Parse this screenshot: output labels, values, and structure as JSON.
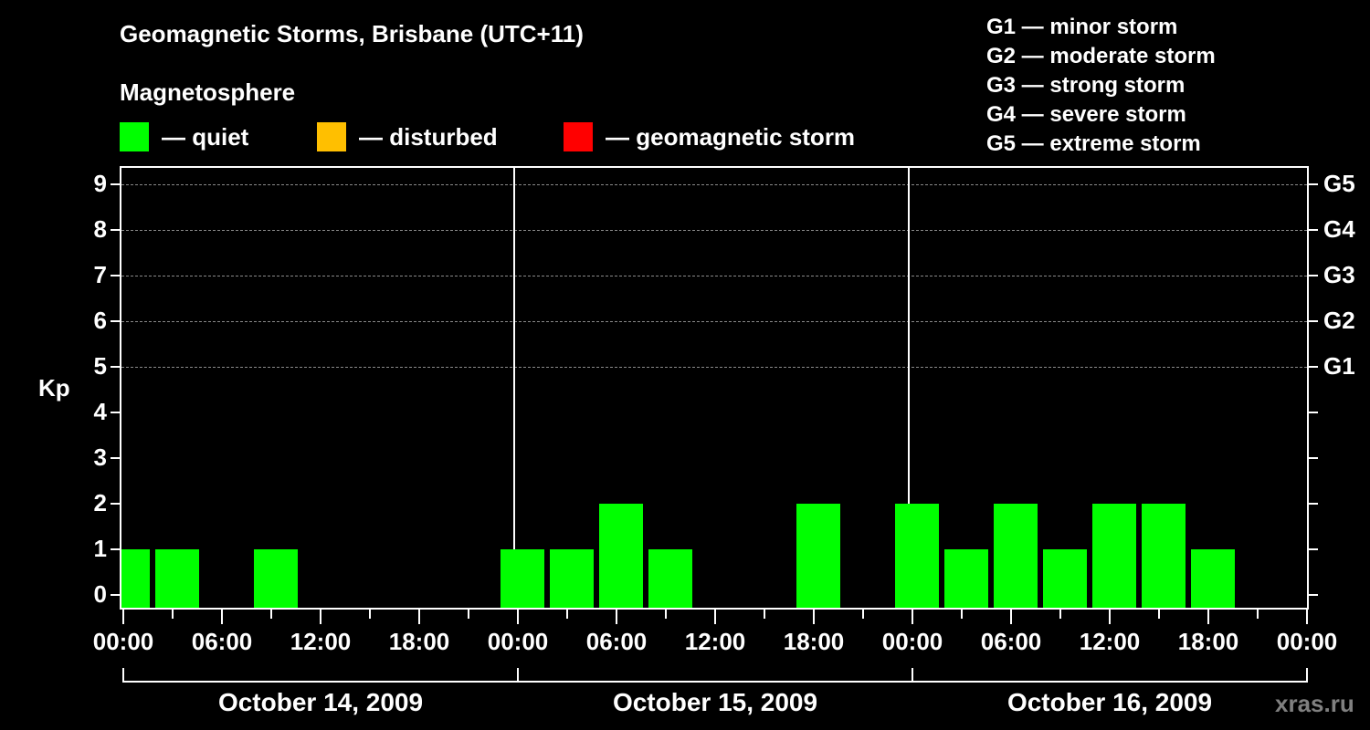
{
  "header": {
    "title": "Geomagnetic Storms, Brisbane (UTC+11)",
    "subtitle": "Magnetosphere"
  },
  "legend": [
    {
      "label": "— quiet",
      "color": "#00ff00"
    },
    {
      "label": "— disturbed",
      "color": "#ffbf00"
    },
    {
      "label": "— geomagnetic storm",
      "color": "#ff0000"
    }
  ],
  "storm_scale": [
    "G1 — minor storm",
    "G2 — moderate storm",
    "G3 — strong storm",
    "G4 — severe storm",
    "G5 — extreme storm"
  ],
  "watermark": "xras.ru",
  "chart_data": {
    "type": "bar",
    "title": "Geomagnetic Storms, Brisbane (UTC+11)",
    "subtitle": "Magnetosphere",
    "xlabel": "",
    "ylabel": "Kp",
    "ylim": [
      0,
      9
    ],
    "yticks": [
      0,
      1,
      2,
      3,
      4,
      5,
      6,
      7,
      8,
      9
    ],
    "right_axis_labels": [
      {
        "kp": 5,
        "label": "G1"
      },
      {
        "kp": 6,
        "label": "G2"
      },
      {
        "kp": 7,
        "label": "G3"
      },
      {
        "kp": 8,
        "label": "G4"
      },
      {
        "kp": 9,
        "label": "G5"
      }
    ],
    "grid": "dashed horizontal at Kp 5-9",
    "xtick_labels": [
      "00:00",
      "06:00",
      "12:00",
      "18:00",
      "00:00",
      "06:00",
      "12:00",
      "18:00",
      "00:00",
      "06:00",
      "12:00",
      "18:00",
      "00:00"
    ],
    "days": [
      "October 14, 2009",
      "October 15, 2009",
      "October 16, 2009"
    ],
    "categories": [
      "Oct 14 00:00",
      "Oct 14 03:00",
      "Oct 14 06:00",
      "Oct 14 09:00",
      "Oct 14 12:00",
      "Oct 14 15:00",
      "Oct 14 18:00",
      "Oct 14 21:00",
      "Oct 15 00:00",
      "Oct 15 03:00",
      "Oct 15 06:00",
      "Oct 15 09:00",
      "Oct 15 12:00",
      "Oct 15 15:00",
      "Oct 15 18:00",
      "Oct 15 21:00",
      "Oct 16 00:00",
      "Oct 16 03:00",
      "Oct 16 06:00",
      "Oct 16 09:00",
      "Oct 16 12:00",
      "Oct 16 15:00",
      "Oct 16 18:00",
      "Oct 16 21:00"
    ],
    "values": [
      1,
      1,
      0,
      1,
      0,
      0,
      0,
      0,
      1,
      1,
      2,
      1,
      0,
      0,
      2,
      0,
      2,
      1,
      2,
      1,
      2,
      2,
      1,
      0
    ],
    "bar_color_quiet": "#00ff00",
    "legend": [
      "quiet",
      "disturbed",
      "geomagnetic storm"
    ],
    "legend_position": "top"
  }
}
